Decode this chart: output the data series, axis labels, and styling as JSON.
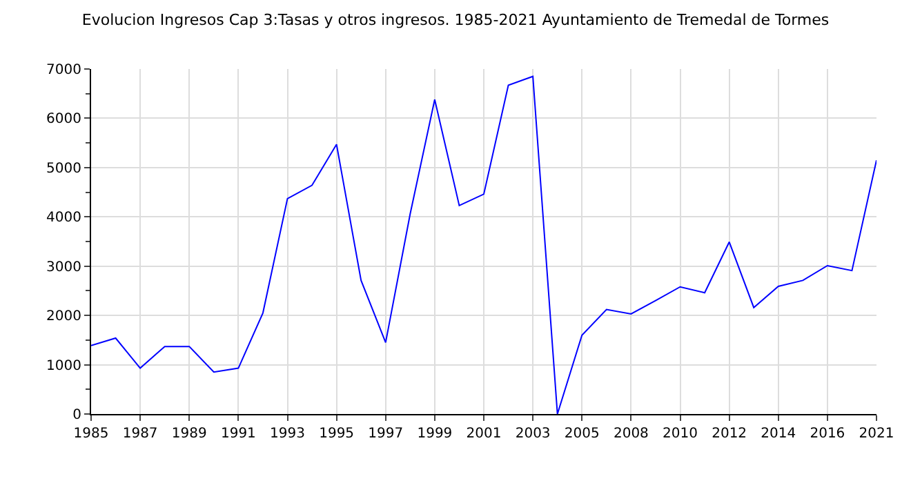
{
  "chart_data": {
    "type": "line",
    "title": "Evolucion Ingresos Cap 3:Tasas y otros ingresos. 1985-2021 Ayuntamiento de Tremedal de Tormes",
    "categories": [
      "1985",
      null,
      "1987",
      null,
      "1989",
      null,
      "1991",
      null,
      "1993",
      null,
      "1995",
      null,
      "1997",
      null,
      "1999",
      null,
      "2001",
      null,
      "2003",
      null,
      "2005",
      null,
      "2008",
      null,
      "2010",
      null,
      "2012",
      null,
      "2014",
      null,
      "2016",
      null,
      "2021"
    ],
    "series": [
      {
        "color": "#0000ff",
        "values": [
          1390,
          1540,
          930,
          1370,
          1370,
          850,
          930,
          2050,
          4370,
          4640,
          5470,
          2710,
          1450,
          4060,
          6380,
          4230,
          4460,
          6670,
          6850,
          0,
          1600,
          2120,
          2030,
          2300,
          2580,
          2460,
          3490,
          2160,
          2590,
          2710,
          3010,
          2910,
          5150
        ]
      }
    ],
    "ylim": [
      0,
      7000
    ],
    "yticks": [
      0,
      1000,
      2000,
      3000,
      4000,
      5000,
      6000,
      7000
    ],
    "grid": true,
    "marker": "none",
    "line_style": "solid"
  }
}
